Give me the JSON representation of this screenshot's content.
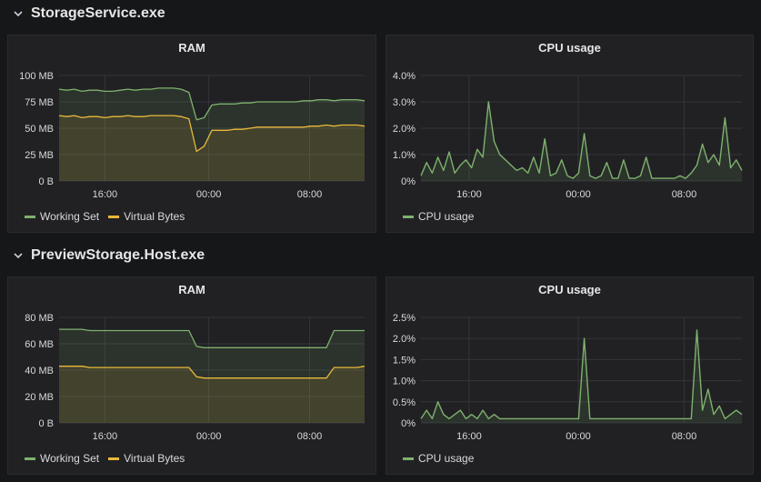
{
  "colors": {
    "working_set": "#7eb26d",
    "virtual_bytes": "#eab839",
    "cpu": "#7eb26d"
  },
  "rows": [
    {
      "title": "StorageService.exe",
      "icon": "chevron-down-icon",
      "panels": [
        {
          "title": "RAM",
          "chart_data": {
            "type": "line",
            "title": "RAM",
            "x_ticks": [
              "16:00",
              "00:00",
              "08:00"
            ],
            "y_ticks": [
              "0 B",
              "25 MB",
              "50 MB",
              "75 MB",
              "100 MB"
            ],
            "ylim": [
              0,
              100
            ],
            "grid": true,
            "legend_placement": "bottom-left",
            "series": [
              {
                "name": "Working Set",
                "color": "#7eb26d",
                "values": [
                  87,
                  86,
                  87,
                  85,
                  86,
                  86,
                  85,
                  85,
                  86,
                  87,
                  86,
                  87,
                  87,
                  88,
                  88,
                  88,
                  87,
                  84,
                  58,
                  60,
                  72,
                  73,
                  73,
                  73,
                  74,
                  74,
                  75,
                  75,
                  75,
                  75,
                  75,
                  75,
                  76,
                  76,
                  77,
                  77,
                  76,
                  77,
                  77,
                  77,
                  76
                ]
              },
              {
                "name": "Virtual Bytes",
                "color": "#eab839",
                "values": [
                  62,
                  61,
                  62,
                  60,
                  61,
                  61,
                  60,
                  61,
                  61,
                  62,
                  61,
                  61,
                  62,
                  62,
                  62,
                  62,
                  61,
                  59,
                  28,
                  33,
                  48,
                  48,
                  48,
                  49,
                  49,
                  50,
                  51,
                  51,
                  51,
                  51,
                  51,
                  51,
                  51,
                  52,
                  52,
                  53,
                  52,
                  53,
                  53,
                  53,
                  52
                ]
              }
            ]
          },
          "legend": [
            "Working Set",
            "Virtual Bytes"
          ]
        },
        {
          "title": "CPU usage",
          "chart_data": {
            "type": "line",
            "title": "CPU usage",
            "x_ticks": [
              "16:00",
              "00:00",
              "08:00"
            ],
            "y_ticks": [
              "0%",
              "1.0%",
              "2.0%",
              "3.0%",
              "4.0%"
            ],
            "ylim": [
              0,
              4
            ],
            "grid": true,
            "legend_placement": "bottom-left",
            "series": [
              {
                "name": "CPU usage",
                "color": "#7eb26d",
                "values": [
                  0.2,
                  0.7,
                  0.3,
                  0.9,
                  0.4,
                  1.1,
                  0.3,
                  0.6,
                  0.8,
                  0.5,
                  1.2,
                  0.9,
                  3.0,
                  1.5,
                  1.0,
                  0.8,
                  0.6,
                  0.4,
                  0.5,
                  0.3,
                  0.9,
                  0.3,
                  1.6,
                  0.2,
                  0.3,
                  0.8,
                  0.2,
                  0.1,
                  0.3,
                  1.8,
                  0.2,
                  0.1,
                  0.2,
                  0.7,
                  0.1,
                  0.1,
                  0.8,
                  0.1,
                  0.1,
                  0.2,
                  0.9,
                  0.1,
                  0.1,
                  0.1,
                  0.1,
                  0.1,
                  0.2,
                  0.1,
                  0.3,
                  0.6,
                  1.4,
                  0.7,
                  1.0,
                  0.6,
                  2.4,
                  0.5,
                  0.8,
                  0.4
                ]
              }
            ]
          },
          "legend": [
            "CPU usage"
          ]
        }
      ]
    },
    {
      "title": "PreviewStorage.Host.exe",
      "icon": "chevron-down-icon",
      "panels": [
        {
          "title": "RAM",
          "chart_data": {
            "type": "line",
            "title": "RAM",
            "x_ticks": [
              "16:00",
              "00:00",
              "08:00"
            ],
            "y_ticks": [
              "0 B",
              "20 MB",
              "40 MB",
              "60 MB",
              "80 MB"
            ],
            "ylim": [
              0,
              80
            ],
            "grid": true,
            "legend_placement": "bottom-left",
            "series": [
              {
                "name": "Working Set",
                "color": "#7eb26d",
                "values": [
                  71,
                  71,
                  71,
                  71,
                  70,
                  70,
                  70,
                  70,
                  70,
                  70,
                  70,
                  70,
                  70,
                  70,
                  70,
                  70,
                  70,
                  70,
                  58,
                  57,
                  57,
                  57,
                  57,
                  57,
                  57,
                  57,
                  57,
                  57,
                  57,
                  57,
                  57,
                  57,
                  57,
                  57,
                  57,
                  57,
                  70,
                  70,
                  70,
                  70,
                  70
                ]
              },
              {
                "name": "Virtual Bytes",
                "color": "#eab839",
                "values": [
                  43,
                  43,
                  43,
                  43,
                  42,
                  42,
                  42,
                  42,
                  42,
                  42,
                  42,
                  42,
                  42,
                  42,
                  42,
                  42,
                  42,
                  42,
                  35,
                  34,
                  34,
                  34,
                  34,
                  34,
                  34,
                  34,
                  34,
                  34,
                  34,
                  34,
                  34,
                  34,
                  34,
                  34,
                  34,
                  34,
                  42,
                  42,
                  42,
                  42,
                  43
                ]
              }
            ]
          },
          "legend": [
            "Working Set",
            "Virtual Bytes"
          ]
        },
        {
          "title": "CPU usage",
          "chart_data": {
            "type": "line",
            "title": "CPU usage",
            "x_ticks": [
              "16:00",
              "00:00",
              "08:00"
            ],
            "y_ticks": [
              "0%",
              "0.5%",
              "1.0%",
              "1.5%",
              "2.0%",
              "2.5%"
            ],
            "ylim": [
              0,
              2.5
            ],
            "grid": true,
            "legend_placement": "bottom-left",
            "series": [
              {
                "name": "CPU usage",
                "color": "#7eb26d",
                "values": [
                  0.1,
                  0.3,
                  0.1,
                  0.5,
                  0.2,
                  0.1,
                  0.2,
                  0.3,
                  0.1,
                  0.2,
                  0.1,
                  0.3,
                  0.1,
                  0.2,
                  0.1,
                  0.1,
                  0.1,
                  0.1,
                  0.1,
                  0.1,
                  0.1,
                  0.1,
                  0.1,
                  0.1,
                  0.1,
                  0.1,
                  0.1,
                  0.1,
                  0.1,
                  2.0,
                  0.1,
                  0.1,
                  0.1,
                  0.1,
                  0.1,
                  0.1,
                  0.1,
                  0.1,
                  0.1,
                  0.1,
                  0.1,
                  0.1,
                  0.1,
                  0.1,
                  0.1,
                  0.1,
                  0.1,
                  0.1,
                  0.1,
                  2.2,
                  0.3,
                  0.8,
                  0.2,
                  0.4,
                  0.1,
                  0.2,
                  0.3,
                  0.2
                ]
              }
            ]
          },
          "legend": [
            "CPU usage"
          ]
        }
      ]
    }
  ]
}
